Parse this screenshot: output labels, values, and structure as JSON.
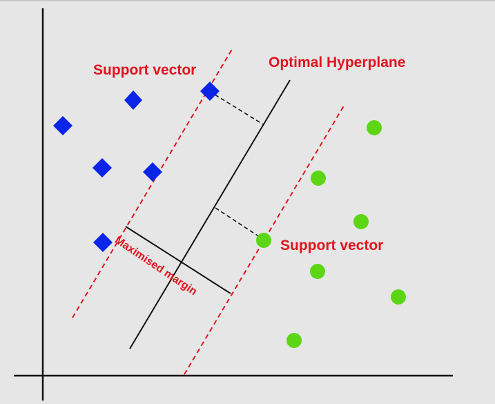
{
  "labels": {
    "support_vector_top": "Support vector",
    "optimal_hyperplane": "Optimal Hyperplane",
    "support_vector_right": "Support vector",
    "maximised_margin": "Maximised margin"
  },
  "colors": {
    "background": "#e6e6e6",
    "class_a": "#0a24e8",
    "class_b": "#5cd614",
    "margin_line": "#e0141e",
    "label_text": "#e0141e",
    "axis": "#111111"
  },
  "icons": {
    "class_a_marker": "diamond",
    "class_b_marker": "circle"
  }
}
